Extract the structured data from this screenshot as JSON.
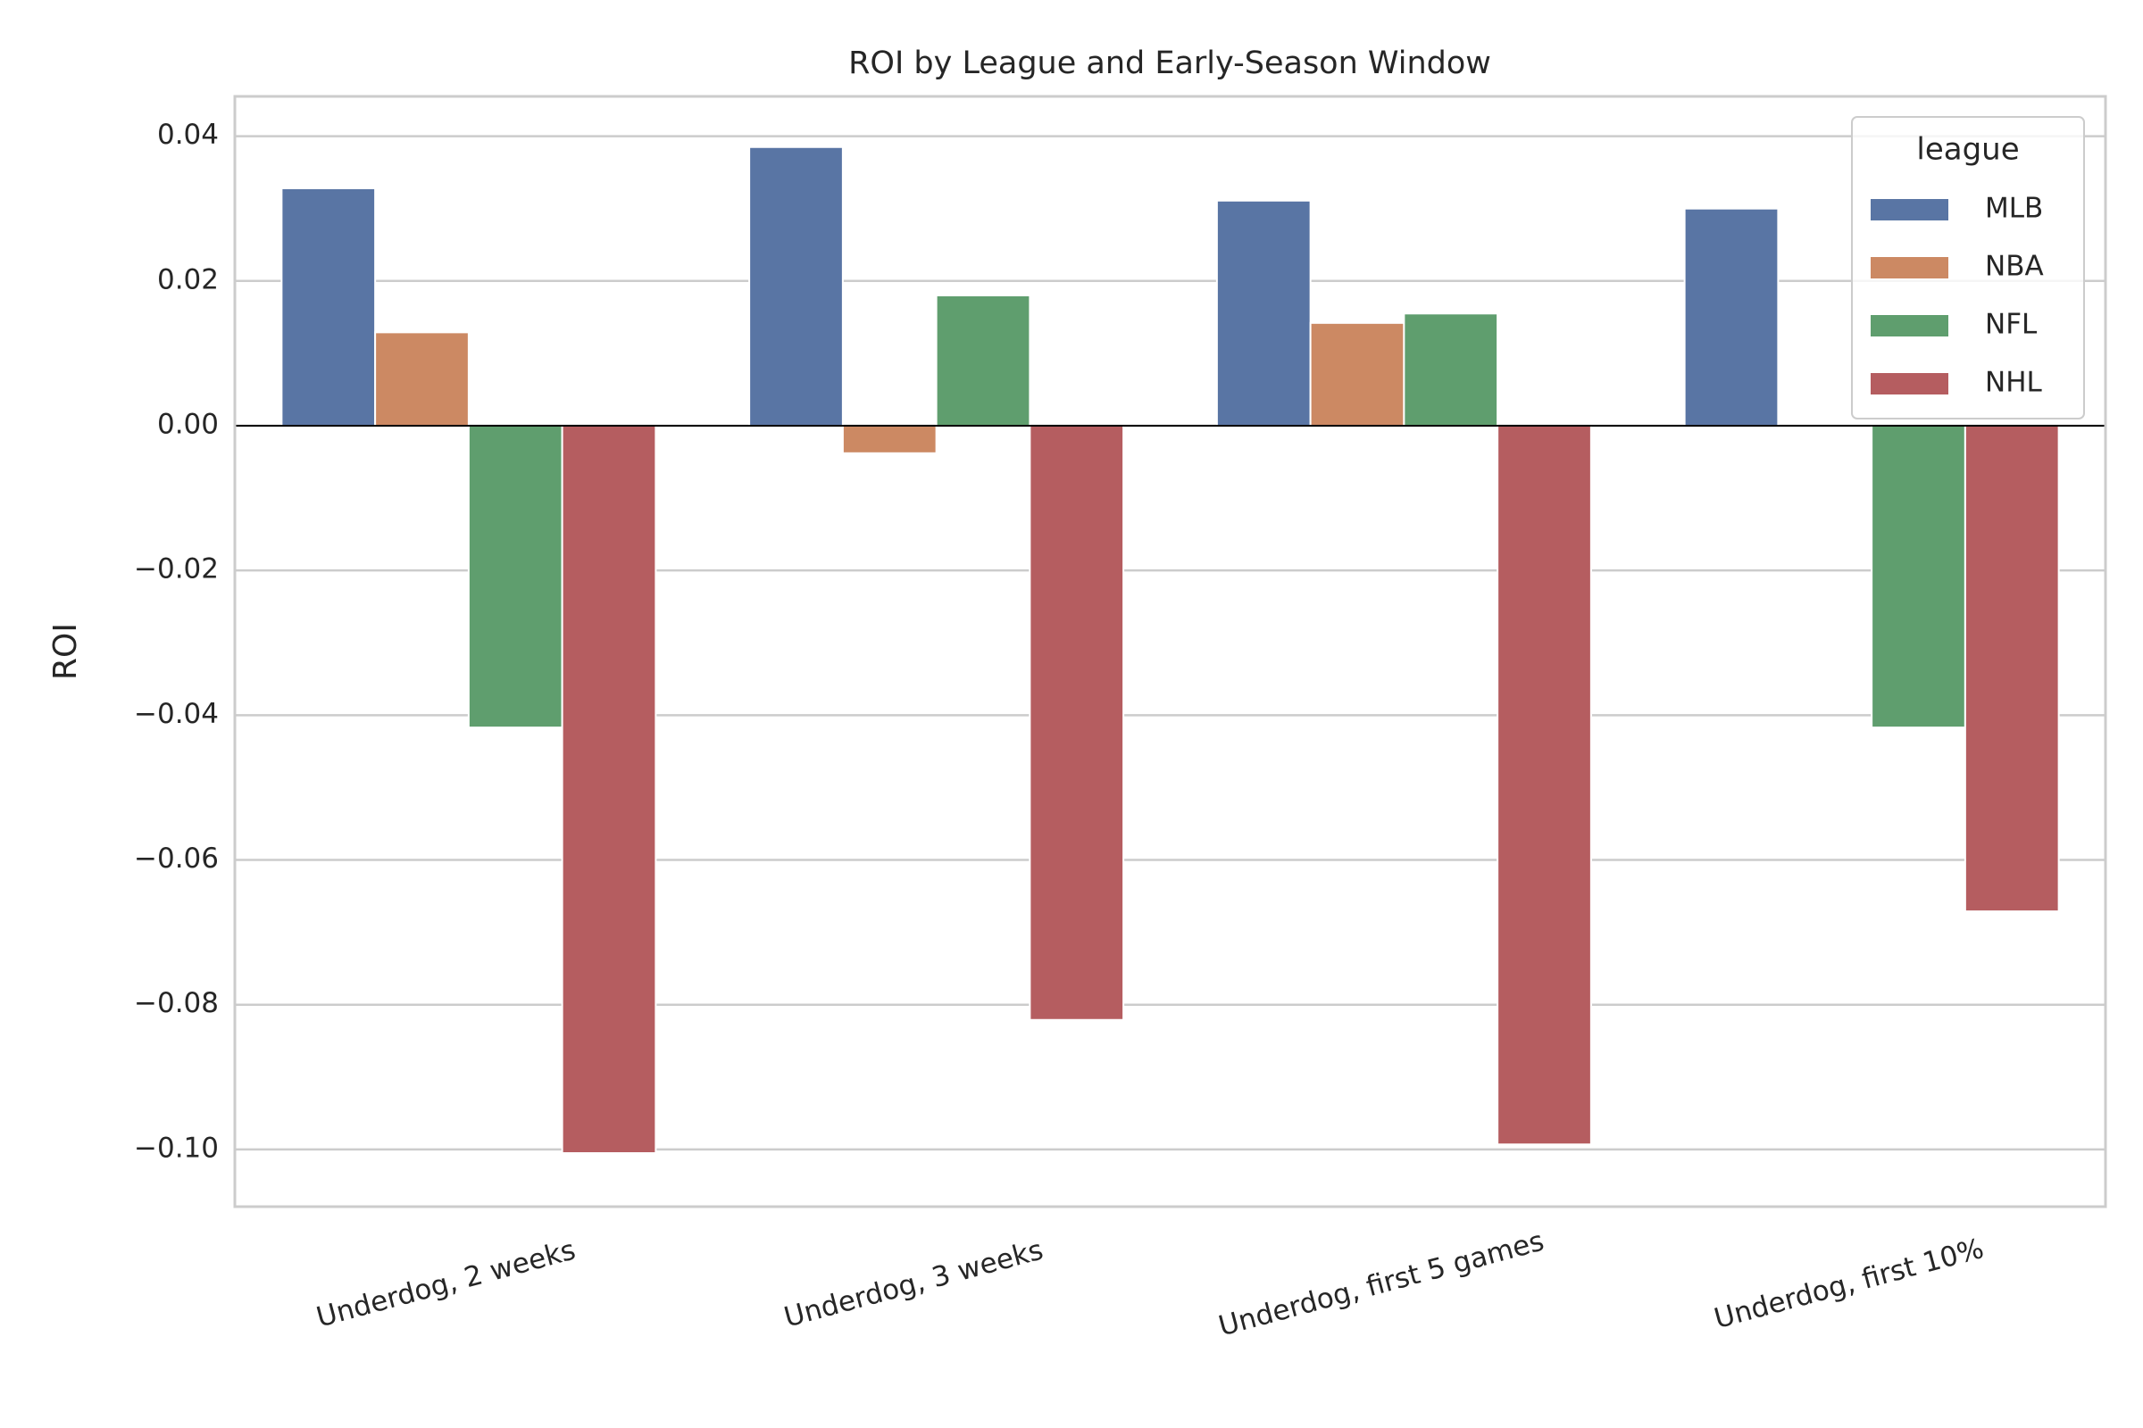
{
  "chart_data": {
    "type": "bar",
    "title": "ROI by League and Early-Season Window",
    "y_label": "ROI",
    "categories": [
      "Underdog, 2 weeks",
      "Underdog, 3 weeks",
      "Underdog, first 5 games",
      "Underdog, first 10%"
    ],
    "series": [
      {
        "name": "MLB",
        "color": "#5975a4",
        "values": [
          0.0328,
          0.0385,
          0.0311,
          0.03
        ]
      },
      {
        "name": "NBA",
        "color": "#cc8963",
        "values": [
          0.0129,
          -0.0038,
          0.0142,
          null
        ]
      },
      {
        "name": "NFL",
        "color": "#5f9e6e",
        "values": [
          -0.0417,
          0.018,
          0.0155,
          -0.0417
        ]
      },
      {
        "name": "NHL",
        "color": "#b55d60",
        "values": [
          -0.1005,
          -0.0821,
          -0.0993,
          -0.0671
        ]
      }
    ],
    "legend_title": "league",
    "legend_position": "upper right",
    "ylim": [
      -0.1079,
      0.0455
    ],
    "yticks": [
      {
        "value": -0.1,
        "label": "−0.10"
      },
      {
        "value": -0.08,
        "label": "−0.08"
      },
      {
        "value": -0.06,
        "label": "−0.06"
      },
      {
        "value": -0.04,
        "label": "−0.04"
      },
      {
        "value": -0.02,
        "label": "−0.02"
      },
      {
        "value": 0,
        "label": "0.00"
      },
      {
        "value": 0.02,
        "label": "0.02"
      },
      {
        "value": 0.04,
        "label": "0.04"
      }
    ],
    "grid": true,
    "zero_line": true
  }
}
